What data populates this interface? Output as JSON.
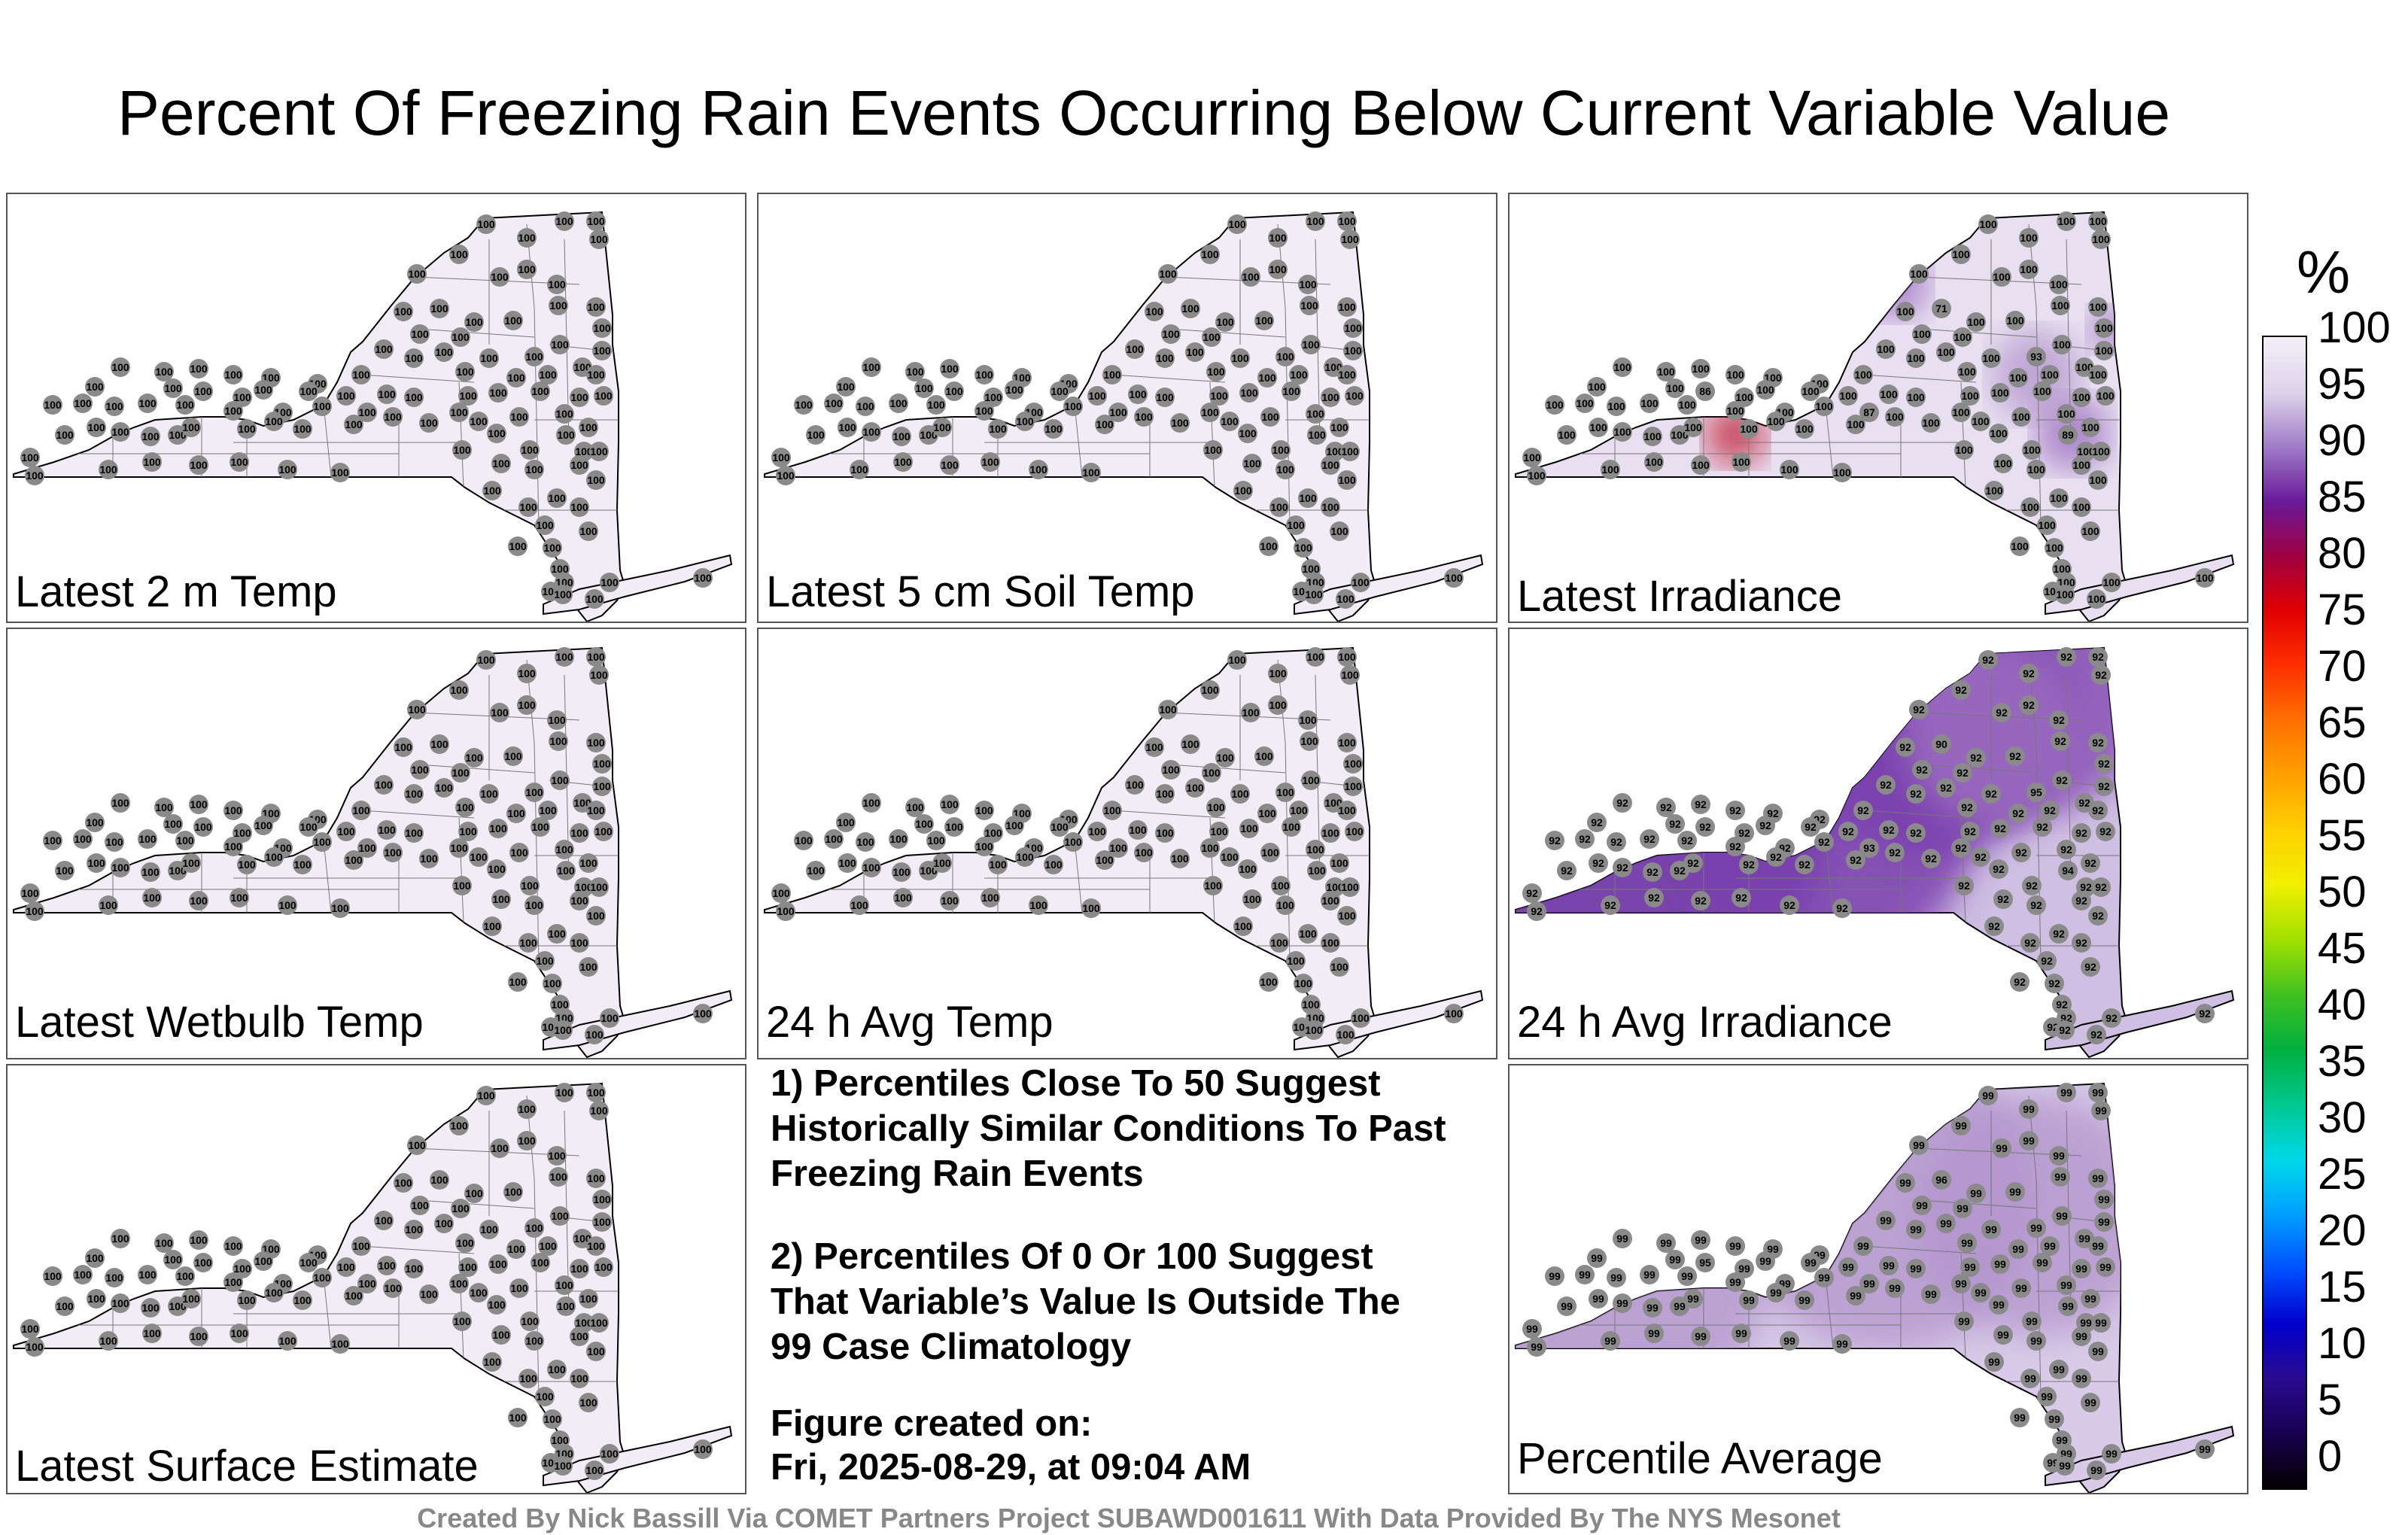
{
  "title": "Percent Of Freezing Rain Events Occurring Below Current Variable Value",
  "panels": [
    {
      "label": "Latest 2 m Temp",
      "fill": "#f1edf7",
      "value": 100,
      "blobs": []
    },
    {
      "label": "Latest 5 cm Soil Temp",
      "fill": "#f1edf7",
      "value": 100,
      "blobs": []
    },
    {
      "label": "Latest Irradiance",
      "fill": "#e8e0f1",
      "value": 100,
      "blobs": [
        {
          "label": "71",
          "color": "#c0102a"
        },
        {
          "label": "86",
          "color": "#9a6bbf"
        },
        {
          "label": "87",
          "color": "#9a6bbf"
        },
        {
          "label": "89",
          "color": "#9a6bbf"
        },
        {
          "label": "93",
          "color": "#b294cc"
        }
      ]
    },
    {
      "label": "Latest Wetbulb Temp",
      "fill": "#f1edf7",
      "value": 100,
      "blobs": []
    },
    {
      "label": "24 h Avg Temp",
      "fill": "#f1edf7",
      "value": 100,
      "blobs": []
    },
    {
      "label": "24 h Avg Irradiance",
      "fill": "#cfbfe2",
      "value": 92,
      "blobs": [
        {
          "label": "90",
          "color": "#6a2da1"
        },
        {
          "label": "92",
          "color": "#7a3fae"
        },
        {
          "label": "93",
          "color": "#7a3fae"
        },
        {
          "label": "94",
          "color": "#8a54b7"
        },
        {
          "label": "95",
          "color": "#9a6bbf"
        }
      ]
    },
    {
      "label": "Latest Surface Estimate",
      "fill": "#f1edf7",
      "value": 100,
      "blobs": []
    },
    {
      "label": "Percentile Average",
      "fill": "#d8cae8",
      "value": 99,
      "blobs": [
        {
          "label": "96",
          "color": "#b294cc"
        },
        {
          "label": "95",
          "color": "#b294cc"
        }
      ]
    }
  ],
  "notes": [
    "1) Percentiles Close To 50 Suggest Historically Similar Conditions To Past Freezing Rain Events",
    "2) Percentiles Of 0 Or 100 Suggest That Variable’s Value Is Outside The 99 Case Climatology",
    "Figure created on:",
    "Fri, 2025-08-29, at 09:04 AM"
  ],
  "credit": "Created By Nick Bassill Via COMET Partners Project SUBAWD001611 With Data Provided By The NYS Mesonet",
  "colorbar": {
    "unit": "%",
    "ticks": [
      "100",
      "95",
      "90",
      "85",
      "80",
      "75",
      "70",
      "65",
      "60",
      "55",
      "50",
      "45",
      "40",
      "35",
      "30",
      "25",
      "20",
      "15",
      "10",
      "5",
      "0"
    ],
    "colors": [
      "#000000",
      "#1a0050",
      "#2a0a90",
      "#0000cc",
      "#0050ff",
      "#00a0ff",
      "#00d8e8",
      "#00c890",
      "#00b040",
      "#40c020",
      "#a0e000",
      "#f0f000",
      "#ffd000",
      "#ffa000",
      "#ff7000",
      "#ff3000",
      "#e00000",
      "#a00040",
      "#6a1a9a",
      "#a07cc8",
      "#ddd3ea",
      "#f3eff8"
    ]
  }
}
